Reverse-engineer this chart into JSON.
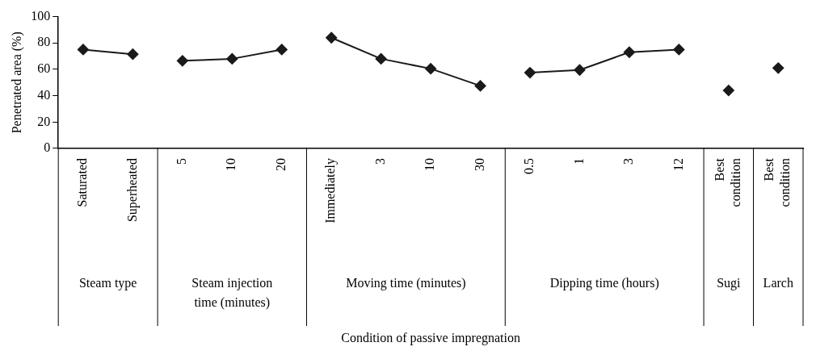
{
  "chart_data": {
    "type": "line",
    "ylabel": "Penetrated area (%)",
    "annotations": [
      "Steam type",
      "Steam injection time (minutes)",
      "Moving time (minutes)",
      "Dipping time (hours)",
      "Sugi",
      "Larch",
      "Condition of passive impregnation"
    ],
    "categories": [
      "Saturated",
      "Superheated",
      "5",
      "10",
      "20",
      "Immediately",
      "3",
      "10",
      "30",
      "0.5",
      "1",
      "3",
      "12",
      "Best condition",
      "Best condition"
    ],
    "series": [
      {
        "color": "#1a1a1a",
        "values": [
          75,
          71.5,
          null,
          null,
          null,
          null,
          null,
          null,
          null,
          null,
          null,
          null,
          null,
          null,
          null
        ]
      },
      {
        "color": "#1a1a1a",
        "values": [
          null,
          null,
          66.5,
          68,
          75,
          null,
          null,
          null,
          null,
          null,
          null,
          null,
          null,
          null,
          null
        ]
      },
      {
        "color": "#1a1a1a",
        "values": [
          null,
          null,
          null,
          null,
          null,
          84,
          68,
          60.5,
          47.5,
          null,
          null,
          null,
          null,
          null,
          null
        ]
      },
      {
        "color": "#1a1a1a",
        "values": [
          null,
          null,
          null,
          null,
          null,
          null,
          null,
          null,
          null,
          57.5,
          59.5,
          73,
          75,
          null,
          null
        ]
      },
      {
        "color": "#1a1a1a",
        "values": [
          null,
          null,
          null,
          null,
          null,
          null,
          null,
          null,
          null,
          null,
          null,
          null,
          null,
          44,
          null
        ]
      },
      {
        "color": "#1a1a1a",
        "values": [
          null,
          null,
          null,
          null,
          null,
          null,
          null,
          null,
          null,
          null,
          null,
          null,
          null,
          null,
          61
        ]
      }
    ],
    "ylim": [
      0,
      100
    ],
    "yticks": [
      0,
      20,
      40,
      60,
      80,
      100
    ],
    "grid": false,
    "legend": false,
    "marker": "diamond",
    "line_style": "solid"
  }
}
